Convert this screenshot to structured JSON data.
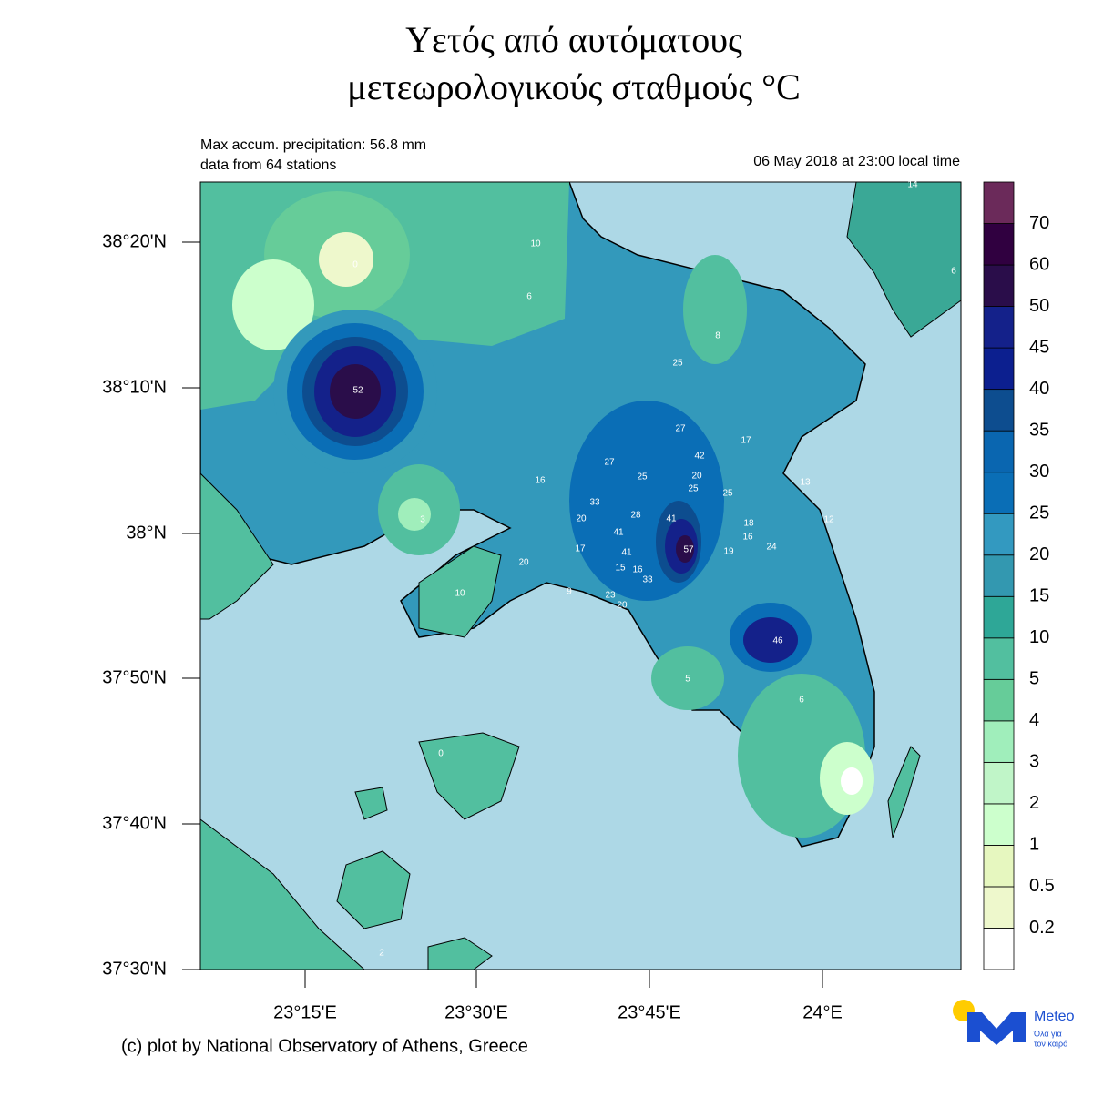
{
  "header": {
    "title_line1": "Υετός από αυτόματους",
    "title_line2": "μετεωρολογικούς σταθμούς °C",
    "note_line1": "Max accum. precipitation: 56.8 mm",
    "note_line2": "data from 64 stations",
    "time": "06 May 2018 at 23:00 local time"
  },
  "axes": {
    "lat_ticks": [
      "38°20'N",
      "38°10'N",
      "38°N",
      "37°50'N",
      "37°40'N",
      "37°30'N"
    ],
    "lon_ticks": [
      "23°15'E",
      "23°30'E",
      "23°45'E",
      "24°E"
    ]
  },
  "stations": [
    10,
    6,
    8,
    25,
    52,
    27,
    17,
    42,
    27,
    25,
    20,
    16,
    25,
    25,
    13,
    33,
    28,
    41,
    20,
    3,
    18,
    12,
    41,
    16,
    24,
    57,
    17,
    41,
    19,
    20,
    15,
    16,
    33,
    9,
    10,
    23,
    20,
    46,
    5,
    6,
    0,
    2,
    0,
    14,
    6
  ],
  "colorbar": {
    "levels": [
      0.2,
      0.5,
      1,
      2,
      3,
      4,
      5,
      10,
      15,
      20,
      25,
      30,
      35,
      40,
      45,
      50,
      60,
      70
    ],
    "colors": [
      "#ffffff",
      "#eef8cc",
      "#e6f7bf",
      "#ccffcc",
      "#c0f5c8",
      "#a0eebb",
      "#66cc99",
      "#52bf9f",
      "#2ea797",
      "#3398b0",
      "#3399c0",
      "#0a6eb6",
      "#0a66b0",
      "#0d4d8f",
      "#0c1f8f",
      "#14218a",
      "#2a0d4a",
      "#300040",
      "#6b2a5a"
    ]
  },
  "footer": {
    "credit": "(c) plot by National Observatory of Athens, Greece",
    "logo_name": "Meteo",
    "logo_tag1": "Όλα για",
    "logo_tag2": "τον καιρό"
  }
}
